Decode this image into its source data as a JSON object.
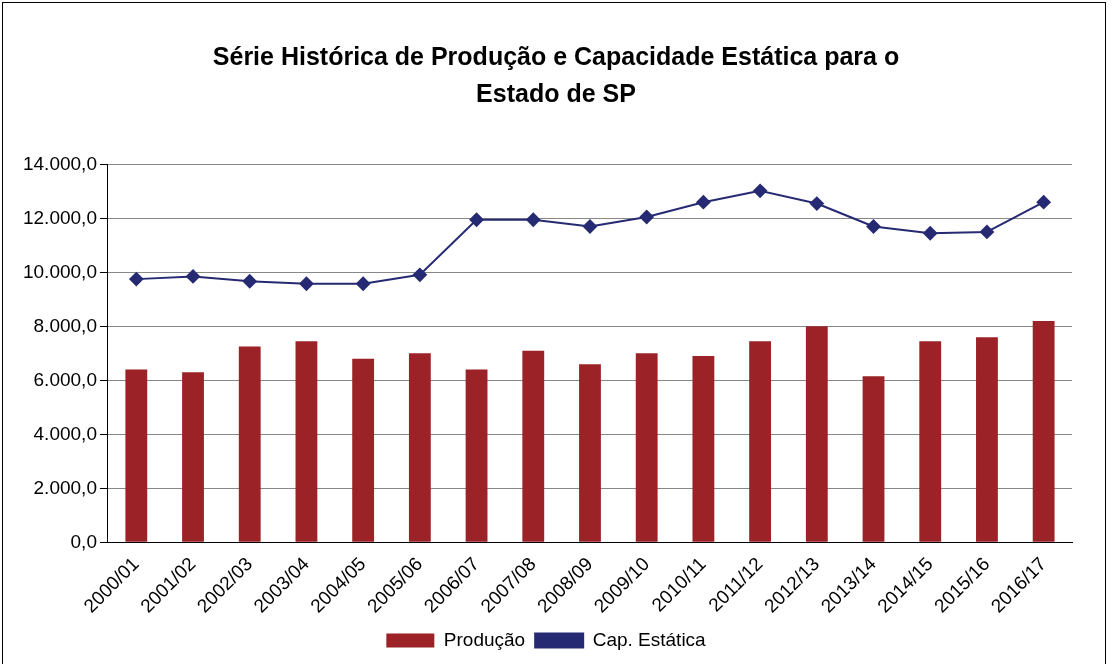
{
  "chart_data": {
    "type": "bar",
    "title": "Série Histórica de Produção e Capacidade Estática para o Estado de SP",
    "categories": [
      "2000/01",
      "2001/02",
      "2002/03",
      "2003/04",
      "2004/05",
      "2005/06",
      "2006/07",
      "2007/08",
      "2008/09",
      "2009/10",
      "2010/11",
      "2011/12",
      "2012/13",
      "2013/14",
      "2014/15",
      "2015/16",
      "2016/17"
    ],
    "series": [
      {
        "name": "Produção",
        "color": "#9b2226",
        "values": [
          6400,
          6300,
          7250,
          7450,
          6800,
          7000,
          6400,
          7100,
          6600,
          7000,
          6900,
          7450,
          8000,
          6150,
          7450,
          7600,
          8200
        ]
      },
      {
        "name": "Cap. Estática",
        "type": "line",
        "color": "#262a73",
        "values": [
          9750,
          9850,
          9670,
          9580,
          9580,
          9910,
          11950,
          11950,
          11700,
          12050,
          12600,
          13020,
          12550,
          11700,
          11450,
          11500,
          12600
        ]
      }
    ],
    "ylim": [
      0,
      14000
    ],
    "yticks": [
      {
        "value": 0,
        "label": "0,0"
      },
      {
        "value": 2000,
        "label": "2.000,0"
      },
      {
        "value": 4000,
        "label": "4.000,0"
      },
      {
        "value": 6000,
        "label": "6.000,0"
      },
      {
        "value": 8000,
        "label": "8.000,0"
      },
      {
        "value": 10000,
        "label": "10.000,0"
      },
      {
        "value": 12000,
        "label": "12.000,0"
      },
      {
        "value": 14000,
        "label": "14.000,0"
      }
    ],
    "grid": "y",
    "legend": "bottom",
    "marker": "diamond",
    "line_style": "solid"
  }
}
